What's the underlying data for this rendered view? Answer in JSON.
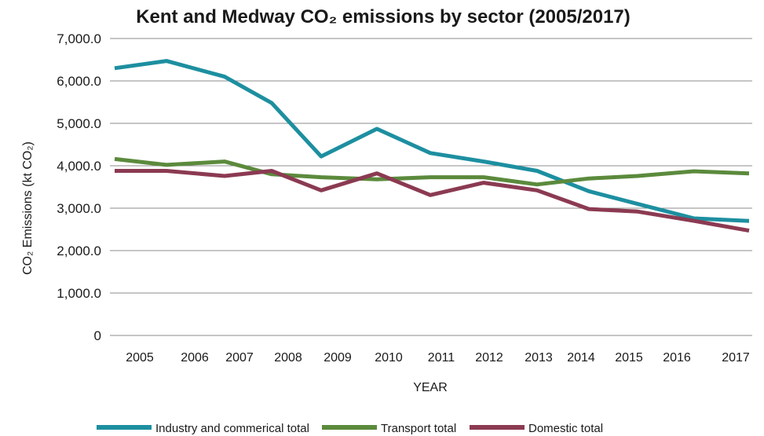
{
  "chart_data": {
    "type": "line",
    "title": "Kent and Medway CO₂ emissions by sector (2005/2017)",
    "xlabel": "YEAR",
    "ylabel": "CO₂ Emissions (kt CO₂)",
    "x_tick_labels": [
      "2005",
      "2006",
      "2007",
      "2008",
      "2009",
      "2010",
      "2011",
      "2012",
      "2013",
      "2014",
      "2015",
      "2016",
      "2017"
    ],
    "y_ticks": [
      0,
      1000,
      2000,
      3000,
      4000,
      5000,
      6000,
      7000
    ],
    "y_tick_labels": [
      "0",
      "1,000.0",
      "2,000.0",
      "3,000.0",
      "4,000.0",
      "5,000.0",
      "6,000.0",
      "7,000.0"
    ],
    "ylim": [
      0,
      7000
    ],
    "grid": true,
    "legend_position": "bottom",
    "series": [
      {
        "name": "Industry and commerical total",
        "color": "#1d8fa0",
        "values": [
          6300,
          6470,
          6100,
          5480,
          4220,
          4870,
          4300,
          4100,
          3880,
          3400,
          3100,
          2760,
          2700
        ]
      },
      {
        "name": "Transport total",
        "color": "#5b8a3c",
        "values": [
          4160,
          4020,
          4100,
          3800,
          3730,
          3680,
          3730,
          3730,
          3560,
          3700,
          3760,
          3870,
          3820
        ]
      },
      {
        "name": "Domestic total",
        "color": "#8b3a52",
        "values": [
          3880,
          3880,
          3760,
          3880,
          3420,
          3820,
          3310,
          3600,
          3420,
          2980,
          2920,
          2700,
          2470
        ]
      }
    ]
  }
}
